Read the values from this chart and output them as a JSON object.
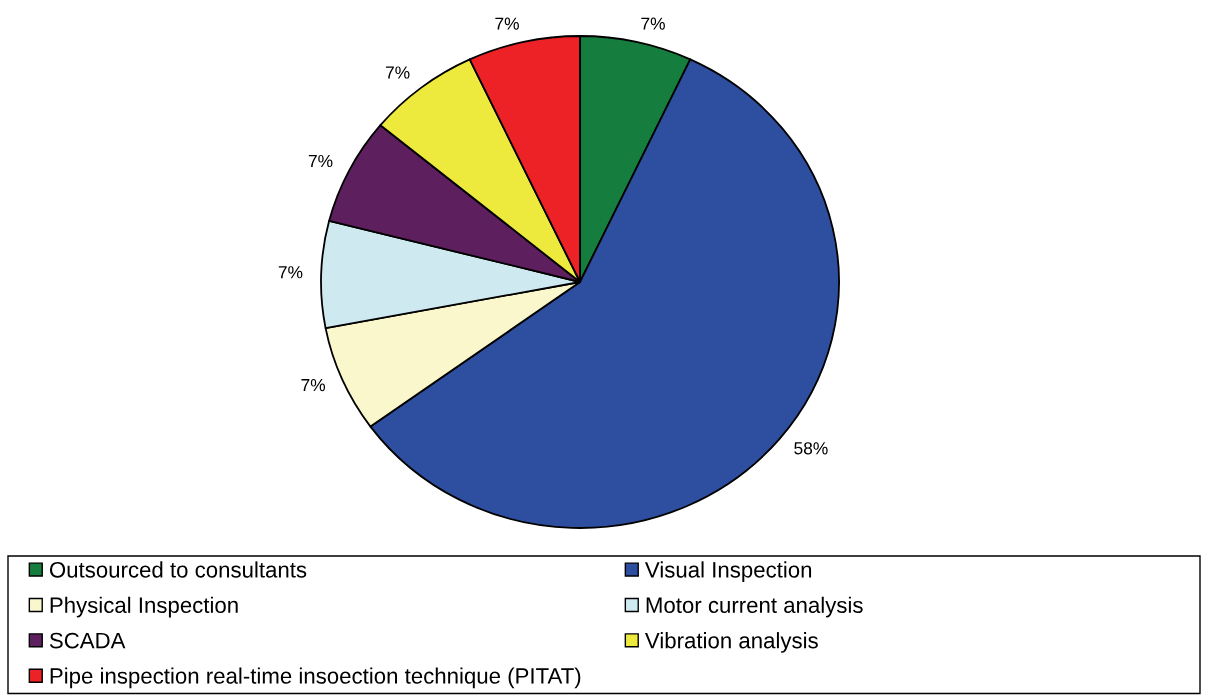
{
  "chart_data": {
    "type": "pie",
    "categories": [
      "Outsourced to consultants",
      "Visual Inspection",
      "Physical Inspection",
      "Motor current analysis",
      "SCADA",
      "Vibration analysis",
      "Pipe inspection real-time insoection technique (PITAT)"
    ],
    "values": [
      7,
      58,
      7,
      7,
      7,
      7,
      7
    ],
    "value_labels": [
      "7%",
      "58%",
      "7%",
      "7%",
      "7%",
      "7%",
      "7%"
    ],
    "colors": [
      "#157d3e",
      "#2e4fa0",
      "#faf7cd",
      "#ceeaf0",
      "#5e1f5e",
      "#ede93d",
      "#ec2226"
    ],
    "legend": "bottom"
  }
}
